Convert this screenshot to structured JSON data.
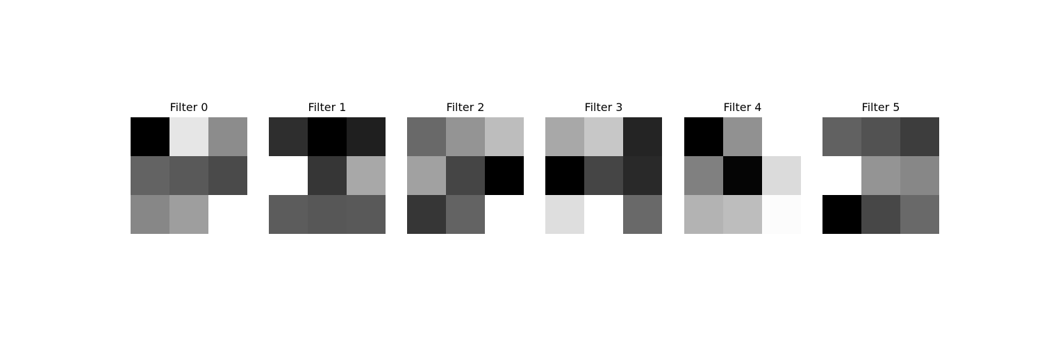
{
  "chart_data": {
    "type": "heatmap",
    "colormap": "gray",
    "grid": false,
    "panels": [
      {
        "title": "Filter 0",
        "values": [
          [
            0.0,
            0.9,
            0.55
          ],
          [
            0.39,
            0.35,
            0.29
          ],
          [
            0.53,
            0.62,
            1.0
          ]
        ]
      },
      {
        "title": "Filter 1",
        "values": [
          [
            0.18,
            0.0,
            0.12
          ],
          [
            1.0,
            0.21,
            0.66
          ],
          [
            0.36,
            0.34,
            0.35
          ]
        ]
      },
      {
        "title": "Filter 2",
        "values": [
          [
            0.41,
            0.58,
            0.74
          ],
          [
            0.63,
            0.27,
            0.0
          ],
          [
            0.21,
            0.39,
            1.0
          ]
        ]
      },
      {
        "title": "Filter 3",
        "values": [
          [
            0.66,
            0.78,
            0.14
          ],
          [
            0.0,
            0.27,
            0.16
          ],
          [
            0.87,
            1.0,
            0.41
          ]
        ]
      },
      {
        "title": "Filter 4",
        "values": [
          [
            0.0,
            0.57,
            1.0
          ],
          [
            0.5,
            0.02,
            0.86
          ],
          [
            0.7,
            0.74,
            0.99
          ]
        ]
      },
      {
        "title": "Filter 5",
        "values": [
          [
            0.38,
            0.32,
            0.24
          ],
          [
            1.0,
            0.58,
            0.53
          ],
          [
            0.0,
            0.28,
            0.41
          ]
        ]
      }
    ]
  }
}
